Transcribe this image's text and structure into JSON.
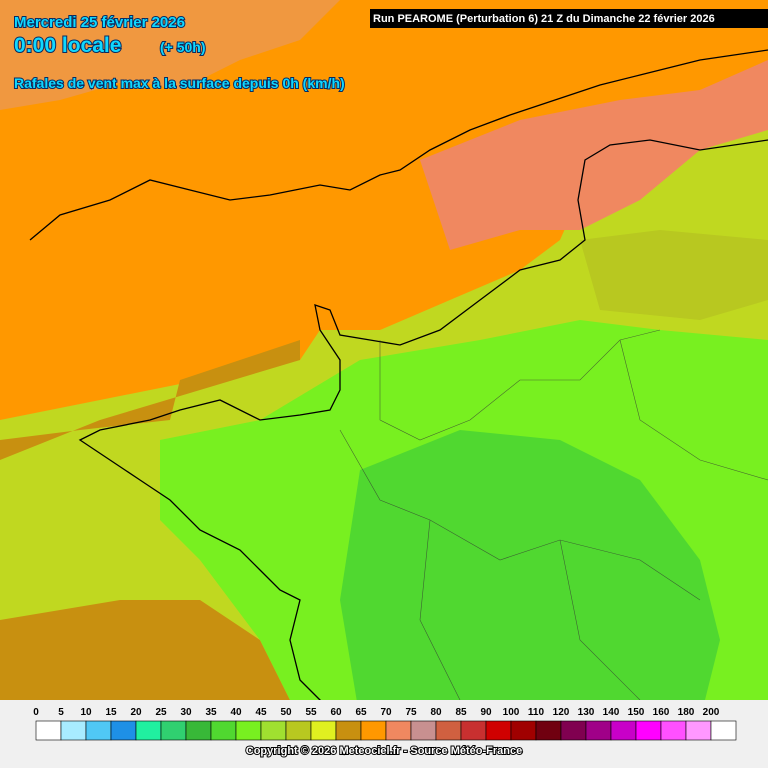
{
  "header": {
    "date": "Mercredi 25 février 2026",
    "time": "0:00 locale",
    "offset": "(+ 50h)",
    "parameter": "Rafales de vent max à la surface depuis 0h (km/h)",
    "run": "Run PEAROME (Perturbation 6) 21 Z du Dimanche 22 février 2026"
  },
  "legend": {
    "items": [
      {
        "label": 0,
        "color": "#ffffff"
      },
      {
        "label": 5,
        "color": "#a8ecff"
      },
      {
        "label": 10,
        "color": "#50c8f5"
      },
      {
        "label": 15,
        "color": "#1e90e6"
      },
      {
        "label": 20,
        "color": "#20f0a0"
      },
      {
        "label": 25,
        "color": "#30d070"
      },
      {
        "label": 30,
        "color": "#38b838"
      },
      {
        "label": 35,
        "color": "#50d830"
      },
      {
        "label": 40,
        "color": "#78f020"
      },
      {
        "label": 45,
        "color": "#a0e030"
      },
      {
        "label": 50,
        "color": "#b8c820"
      },
      {
        "label": 55,
        "color": "#e0f020"
      },
      {
        "label": 60,
        "color": "#c89010"
      },
      {
        "label": 65,
        "color": "#ff9800"
      },
      {
        "label": 70,
        "color": "#f08860"
      },
      {
        "label": 75,
        "color": "#c89090"
      },
      {
        "label": 80,
        "color": "#d06040"
      },
      {
        "label": 85,
        "color": "#c83030"
      },
      {
        "label": 90,
        "color": "#d00000"
      },
      {
        "label": 100,
        "color": "#a00000"
      },
      {
        "label": 110,
        "color": "#700010"
      },
      {
        "label": 120,
        "color": "#800050"
      },
      {
        "label": 130,
        "color": "#a00088"
      },
      {
        "label": 140,
        "color": "#c800c8"
      },
      {
        "label": 150,
        "color": "#ff00ff"
      },
      {
        "label": 160,
        "color": "#ff50ff"
      },
      {
        "label": 180,
        "color": "#ff98ff"
      },
      {
        "label": 200,
        "color": "#ffffff"
      }
    ]
  },
  "footer": {
    "copyright": "Copyright © 2026 Meteociel.fr - Source Météo-France"
  }
}
